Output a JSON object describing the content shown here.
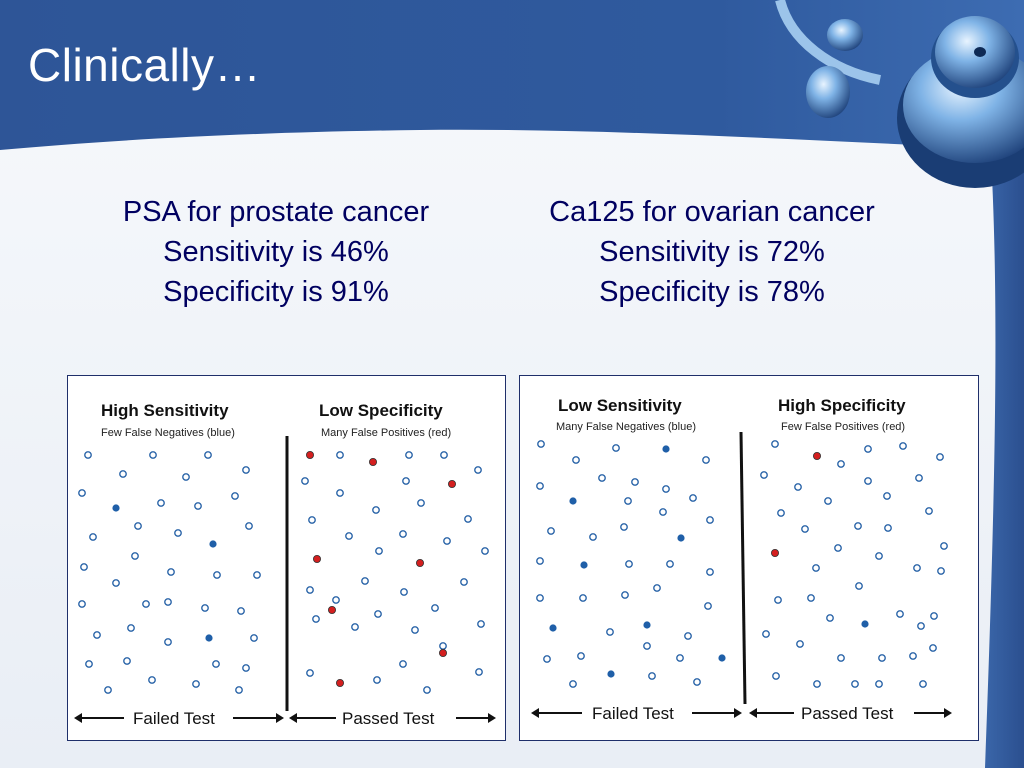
{
  "title": "Clinically…",
  "colors": {
    "banner": "#2f5596",
    "text_dark_blue": "#000060",
    "dot_blue": "#1f5fa8",
    "dot_red": "#d41f1f",
    "dot_outline": "#2a64a8"
  },
  "decor": {
    "image": "stethoscope-icon"
  },
  "tests": [
    {
      "name": "PSA for prostate cancer",
      "sensitivity": "Sensitivity is 46%",
      "specificity": "Specificity is 91%"
    },
    {
      "name": "Ca125 for ovarian cancer",
      "sensitivity": "Sensitivity is 72%",
      "specificity": "Specificity is 78%"
    }
  ],
  "panels": [
    {
      "left_title": "High Sensitivity",
      "left_subtitle": "Few False Negatives (blue)",
      "right_title": "Low Specificity",
      "right_subtitle": "Many False Positives (red)",
      "failed_label": "Failed Test",
      "passed_label": "Passed Test"
    },
    {
      "left_title": "Low Sensitivity",
      "left_subtitle": "Many False Negatives (blue)",
      "right_title": "High Specificity",
      "right_subtitle": "Few False Positives (red)",
      "failed_label": "Failed Test",
      "passed_label": "Passed Test"
    }
  ]
}
